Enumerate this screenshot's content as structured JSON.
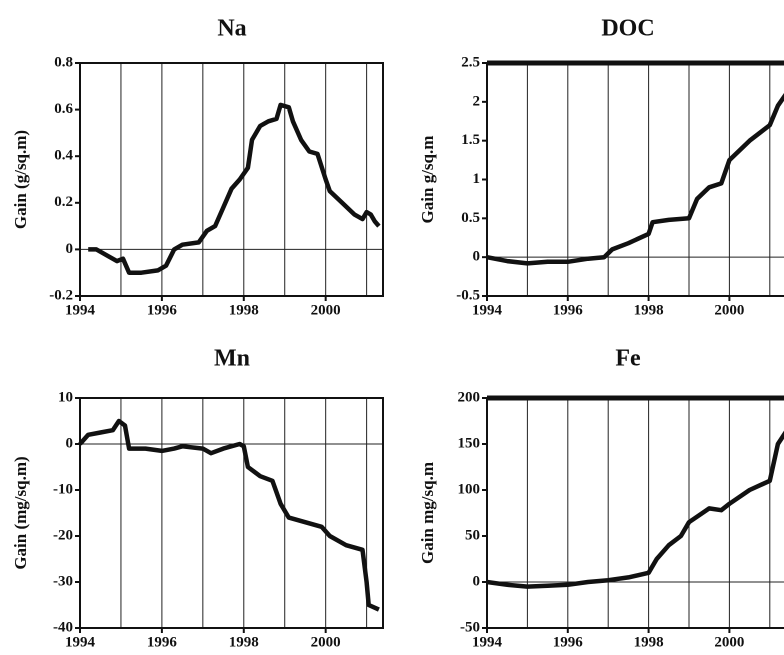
{
  "chart_data": [
    {
      "type": "line",
      "title": "Na",
      "ylabel": "Gain (g/sq.m)",
      "color": "#111111",
      "x": [
        1994.2,
        1994.4,
        1994.7,
        1994.9,
        1995.05,
        1995.2,
        1995.5,
        1995.9,
        1996.1,
        1996.3,
        1996.5,
        1996.9,
        1997.1,
        1997.3,
        1997.5,
        1997.7,
        1997.9,
        1998.1,
        1998.2,
        1998.4,
        1998.6,
        1998.8,
        1998.9,
        1999.1,
        1999.2,
        1999.4,
        1999.6,
        1999.8,
        2000.0,
        2000.1,
        2000.4,
        2000.7,
        2000.9,
        2001.0,
        2001.1,
        2001.2,
        2001.3
      ],
      "values": [
        0,
        0,
        -0.03,
        -0.05,
        -0.04,
        -0.1,
        -0.1,
        -0.09,
        -0.07,
        0,
        0.02,
        0.03,
        0.08,
        0.1,
        0.18,
        0.26,
        0.3,
        0.35,
        0.47,
        0.53,
        0.55,
        0.56,
        0.62,
        0.61,
        0.55,
        0.47,
        0.42,
        0.41,
        0.3,
        0.25,
        0.2,
        0.15,
        0.13,
        0.16,
        0.15,
        0.12,
        0.1
      ],
      "xlim": [
        1994,
        2001.4
      ],
      "ylim": [
        -0.2,
        0.8
      ],
      "xticks": [
        1994,
        1996,
        1998,
        2000
      ],
      "yticks": [
        -0.2,
        0,
        0.2,
        0.4,
        0.6,
        0.8
      ],
      "xgrid": [
        1995,
        1996,
        1997,
        1998,
        1999,
        2000,
        2001
      ],
      "reference_line": 0
    },
    {
      "type": "line",
      "title": "DOC",
      "ylabel": "Gain g/sq.m",
      "color": "#111111",
      "x": [
        1994,
        1994.5,
        1995,
        1995.5,
        1996,
        1996.5,
        1996.9,
        1997.1,
        1997.5,
        1998,
        1998.1,
        1998.5,
        1999,
        1999.2,
        1999.5,
        1999.8,
        2000,
        2000.5,
        2001,
        2001.2,
        2001.4,
        2001.6
      ],
      "values": [
        0,
        -0.05,
        -0.08,
        -0.06,
        -0.06,
        -0.02,
        0,
        0.1,
        0.18,
        0.3,
        0.45,
        0.48,
        0.5,
        0.75,
        0.9,
        0.95,
        1.25,
        1.5,
        1.7,
        1.95,
        2.1,
        2.2
      ],
      "xlim": [
        1994,
        2001.5
      ],
      "ylim": [
        -0.5,
        2.5
      ],
      "xticks": [
        1994,
        1996,
        1998,
        2000
      ],
      "yticks": [
        -0.5,
        0,
        0.5,
        1,
        1.5,
        2,
        2.5
      ],
      "xgrid": [
        1995,
        1996,
        1997,
        1998,
        1999,
        2000,
        2001
      ],
      "reference_line": 0
    },
    {
      "type": "line",
      "title": "Mn",
      "ylabel": "Gain (mg/sq.m)",
      "color": "#111111",
      "x": [
        1994,
        1994.2,
        1994.5,
        1994.8,
        1994.95,
        1995.1,
        1995.2,
        1995.6,
        1996,
        1996.3,
        1996.5,
        1997,
        1997.2,
        1997.5,
        1997.9,
        1998,
        1998.1,
        1998.4,
        1998.7,
        1998.9,
        1999.1,
        1999.5,
        1999.9,
        2000.1,
        2000.5,
        2000.9,
        2001.0,
        2001.05,
        2001.3
      ],
      "values": [
        0,
        2,
        2.5,
        3,
        5,
        4,
        -1,
        -1,
        -1.5,
        -1,
        -0.5,
        -1,
        -2,
        -1,
        0,
        -0.5,
        -5,
        -7,
        -8,
        -13,
        -16,
        -17,
        -18,
        -20,
        -22,
        -23,
        -30,
        -35,
        -36
      ],
      "xlim": [
        1994,
        2001.4
      ],
      "ylim": [
        -40,
        10
      ],
      "xticks": [
        1994,
        1996,
        1998,
        2000
      ],
      "yticks": [
        -40,
        -30,
        -20,
        -10,
        0,
        10
      ],
      "xgrid": [
        1995,
        1996,
        1997,
        1998,
        1999,
        2000,
        2001
      ],
      "reference_line": 0
    },
    {
      "type": "line",
      "title": "Fe",
      "ylabel": "Gain mg/sq.m",
      "color": "#111111",
      "x": [
        1994,
        1994.5,
        1995,
        1995.5,
        1996,
        1996.5,
        1997,
        1997.5,
        1998,
        1998.2,
        1998.5,
        1998.8,
        1999,
        1999.5,
        1999.8,
        2000,
        2000.5,
        2001,
        2001.2,
        2001.5
      ],
      "values": [
        0,
        -3,
        -5,
        -4,
        -3,
        0,
        2,
        5,
        10,
        25,
        40,
        50,
        65,
        80,
        78,
        85,
        100,
        110,
        150,
        170
      ],
      "xlim": [
        1994,
        2001.5
      ],
      "ylim": [
        -50,
        200
      ],
      "xticks": [
        1994,
        1996,
        1998,
        2000
      ],
      "yticks": [
        -50,
        0,
        50,
        100,
        150,
        200
      ],
      "xgrid": [
        1995,
        1996,
        1997,
        1998,
        1999,
        2000,
        2001
      ],
      "reference_line": 0
    }
  ]
}
